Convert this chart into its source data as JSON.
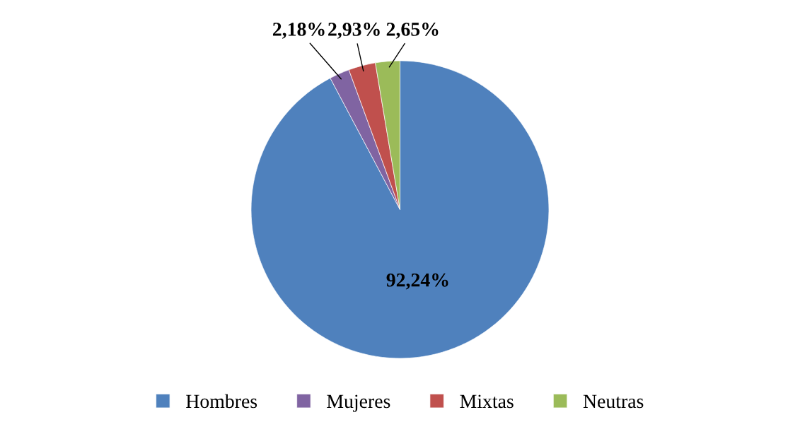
{
  "chart_data": {
    "type": "pie",
    "categories": [
      "Hombres",
      "Mujeres",
      "Mixtas",
      "Neutras"
    ],
    "values": [
      92.24,
      2.18,
      2.93,
      2.65
    ],
    "colors": [
      "#4f81bd",
      "#8064a2",
      "#c0504d",
      "#9bbb59"
    ],
    "value_labels": [
      "92,24%",
      "2,18%",
      "2,93%",
      "2,65%"
    ],
    "legend": "bottom"
  }
}
